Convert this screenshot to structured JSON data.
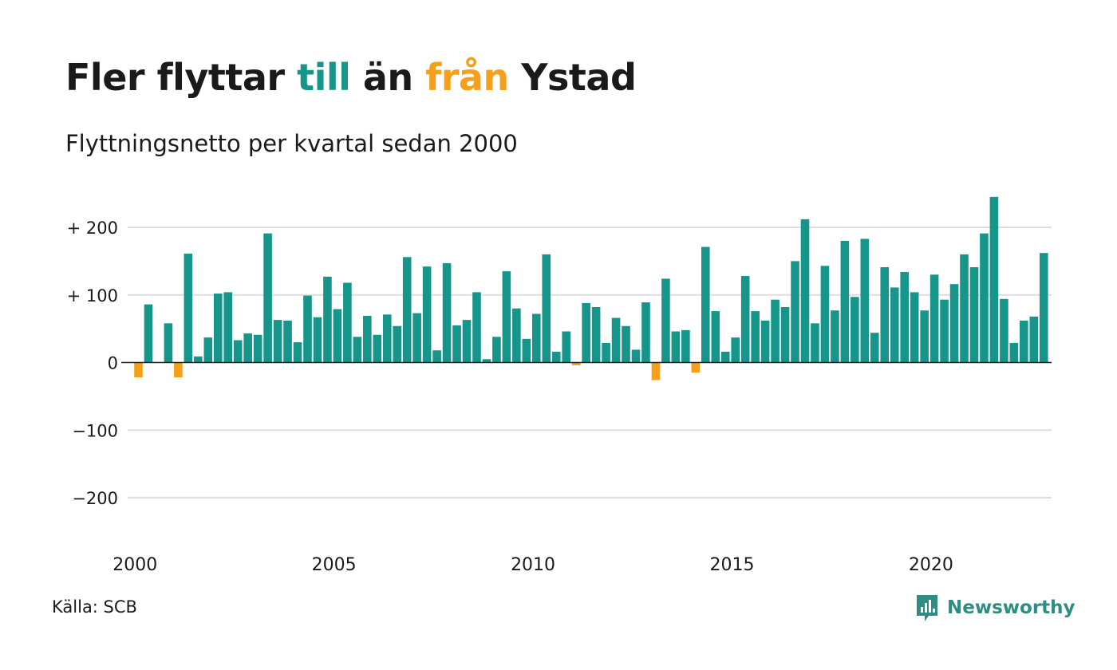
{
  "header": {
    "title_parts": [
      "Fler flyttar ",
      "till",
      " än ",
      "från",
      " Ystad"
    ],
    "subtitle": "Flyttningsnetto per kvartal sedan 2000"
  },
  "footer": {
    "source": "Källa: SCB",
    "brand": "Newsworthy",
    "brand_icon": "newsworthy-logo-icon"
  },
  "colors": {
    "positive": "#16968A",
    "negative": "#F5A01D",
    "grid": "#dddddd",
    "zero_line": "#222222",
    "text": "#1a1a1a",
    "brand": "#2e8c82"
  },
  "chart_data": {
    "type": "bar",
    "title": "Fler flyttar till än från Ystad",
    "subtitle": "Flyttningsnetto per kvartal sedan 2000",
    "xlabel": "",
    "ylabel": "",
    "ylim": [
      -240,
      260
    ],
    "yticks": [
      200,
      100,
      0,
      -100,
      -200
    ],
    "ytick_labels": [
      "+ 200",
      "+ 100",
      "0",
      "−100",
      "−200"
    ],
    "xticks": [
      2000,
      2005,
      2010,
      2015,
      2020
    ],
    "xtick_labels": [
      "2000",
      "2005",
      "2010",
      "2015",
      "2020"
    ],
    "grid": true,
    "start": "2000 Q1",
    "frequency": "quarterly",
    "values": [
      -22,
      86,
      0,
      58,
      -22,
      161,
      9,
      37,
      102,
      104,
      33,
      43,
      41,
      191,
      63,
      62,
      30,
      99,
      67,
      127,
      79,
      118,
      38,
      69,
      41,
      71,
      54,
      156,
      73,
      142,
      18,
      147,
      55,
      63,
      104,
      5,
      38,
      135,
      80,
      35,
      72,
      160,
      16,
      46,
      -4,
      88,
      82,
      29,
      66,
      54,
      19,
      89,
      -26,
      124,
      46,
      48,
      -15,
      171,
      76,
      16,
      37,
      128,
      76,
      62,
      93,
      82,
      150,
      212,
      58,
      143,
      77,
      180,
      97,
      183,
      44,
      141,
      111,
      134,
      104,
      77,
      130,
      93,
      116,
      160,
      141,
      191,
      245,
      94,
      29,
      62,
      68,
      162
    ]
  }
}
